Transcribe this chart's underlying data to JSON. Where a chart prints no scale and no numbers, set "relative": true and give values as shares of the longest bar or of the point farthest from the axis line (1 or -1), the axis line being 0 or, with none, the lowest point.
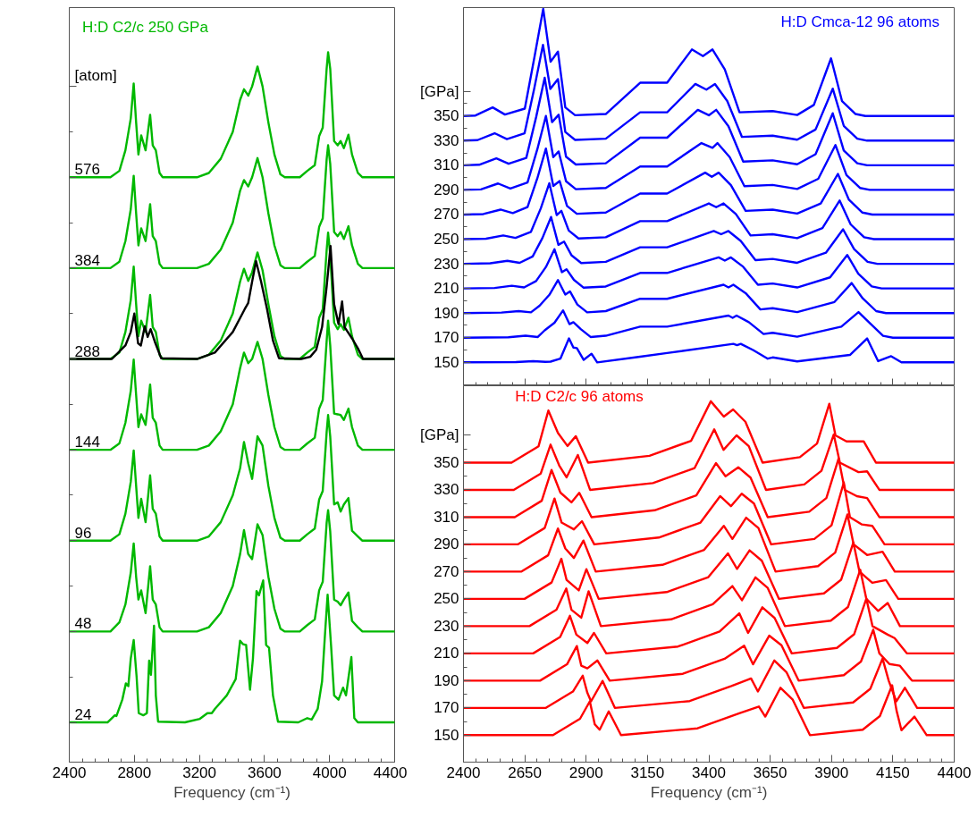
{
  "chart_data": [
    {
      "type": "line",
      "title": "H:D C2/c 250 GPa",
      "xlabel": "Frequency (cm⁻¹)",
      "ylabel": "[atom]",
      "relative": true,
      "xlim": [
        2400,
        4400
      ],
      "xticks": [
        2400,
        2800,
        3200,
        3600,
        4000,
        4400
      ],
      "x": [
        2400,
        2653,
        2708,
        2745,
        2778,
        2796,
        2811,
        2825,
        2842,
        2869,
        2897,
        2913,
        2932,
        2955,
        2974,
        3185,
        3258,
        3331,
        3405,
        3450,
        3474,
        3500,
        3524,
        3557,
        3588,
        3624,
        3661,
        3698,
        3725,
        3817,
        3863,
        3909,
        3936,
        3958,
        3982,
        3991,
        4004,
        4028,
        4050,
        4068,
        4088,
        4116,
        4138,
        4174,
        4202,
        4400
      ],
      "series": [
        {
          "name": "24",
          "color": "#00b800",
          "x": [
            2400,
            2635,
            2680,
            2690,
            2726,
            2748,
            2763,
            2778,
            2796,
            2814,
            2827,
            2855,
            2877,
            2891,
            2902,
            2921,
            2932,
            2946,
            3111,
            3203,
            3249,
            3276,
            3295,
            3368,
            3423,
            3450,
            3469,
            3487,
            3511,
            3529,
            3551,
            3566,
            3592,
            3610,
            3628,
            3652,
            3683,
            3808,
            3863,
            3890,
            3927,
            3954,
            3973,
            3988,
            4009,
            4028,
            4055,
            4083,
            4101,
            4134,
            4152,
            4174,
            4400
          ],
          "values": [
            0.056,
            0.056,
            0.066,
            0.065,
            0.088,
            0.111,
            0.107,
            0.146,
            0.172,
            0.12,
            0.069,
            0.066,
            0.069,
            0.143,
            0.123,
            0.192,
            0.094,
            0.057,
            0.056,
            0.061,
            0.069,
            0.069,
            0.075,
            0.094,
            0.117,
            0.171,
            0.166,
            0.165,
            0.102,
            0.146,
            0.241,
            0.235,
            0.256,
            0.165,
            0.161,
            0.094,
            0.057,
            0.056,
            0.062,
            0.06,
            0.075,
            0.114,
            0.184,
            0.236,
            0.165,
            0.094,
            0.088,
            0.105,
            0.094,
            0.148,
            0.062,
            0.056,
            0.056
          ]
        },
        {
          "name": "48",
          "color": "#00b800",
          "values": [
            0.184,
            0.184,
            0.197,
            0.222,
            0.267,
            0.308,
            0.261,
            0.229,
            0.242,
            0.21,
            0.276,
            0.229,
            0.222,
            0.19,
            0.184,
            0.184,
            0.19,
            0.21,
            0.248,
            0.293,
            0.327,
            0.293,
            0.286,
            0.335,
            0.32,
            0.261,
            0.216,
            0.188,
            0.184,
            0.184,
            0.193,
            0.201,
            0.242,
            0.254,
            0.337,
            0.355,
            0.325,
            0.229,
            0.226,
            0.221,
            0.229,
            0.239,
            0.199,
            0.19,
            0.184,
            0.184
          ]
        },
        {
          "name": "96",
          "color": "#00b800",
          "values": [
            0.312,
            0.312,
            0.321,
            0.35,
            0.395,
            0.439,
            0.389,
            0.344,
            0.371,
            0.338,
            0.404,
            0.357,
            0.35,
            0.318,
            0.312,
            0.312,
            0.318,
            0.338,
            0.376,
            0.414,
            0.451,
            0.421,
            0.399,
            0.459,
            0.446,
            0.389,
            0.344,
            0.316,
            0.312,
            0.312,
            0.321,
            0.329,
            0.37,
            0.382,
            0.465,
            0.489,
            0.459,
            0.363,
            0.366,
            0.353,
            0.363,
            0.372,
            0.326,
            0.318,
            0.312,
            0.312
          ]
        },
        {
          "name": "144",
          "color": "#00b800",
          "values": [
            0.44,
            0.44,
            0.449,
            0.478,
            0.523,
            0.567,
            0.517,
            0.472,
            0.49,
            0.475,
            0.532,
            0.485,
            0.478,
            0.446,
            0.44,
            0.44,
            0.446,
            0.466,
            0.504,
            0.555,
            0.577,
            0.562,
            0.568,
            0.592,
            0.568,
            0.517,
            0.472,
            0.444,
            0.44,
            0.44,
            0.449,
            0.457,
            0.498,
            0.51,
            0.593,
            0.622,
            0.587,
            0.491,
            0.49,
            0.489,
            0.482,
            0.498,
            0.472,
            0.446,
            0.44,
            0.44
          ]
        },
        {
          "name": "288",
          "color": "#00b800",
          "values": [
            0.568,
            0.568,
            0.577,
            0.606,
            0.651,
            0.698,
            0.645,
            0.6,
            0.622,
            0.606,
            0.658,
            0.613,
            0.606,
            0.574,
            0.568,
            0.568,
            0.574,
            0.594,
            0.632,
            0.677,
            0.695,
            0.678,
            0.69,
            0.718,
            0.693,
            0.645,
            0.6,
            0.572,
            0.568,
            0.568,
            0.577,
            0.585,
            0.626,
            0.638,
            0.721,
            0.746,
            0.715,
            0.619,
            0.61,
            0.617,
            0.609,
            0.626,
            0.6,
            0.574,
            0.568,
            0.568
          ]
        },
        {
          "name": "384",
          "color": "#00b800",
          "values": [
            0.696,
            0.696,
            0.705,
            0.734,
            0.779,
            0.826,
            0.773,
            0.728,
            0.752,
            0.734,
            0.786,
            0.741,
            0.734,
            0.702,
            0.696,
            0.696,
            0.702,
            0.722,
            0.76,
            0.805,
            0.82,
            0.811,
            0.824,
            0.851,
            0.824,
            0.773,
            0.728,
            0.7,
            0.696,
            0.696,
            0.705,
            0.713,
            0.754,
            0.766,
            0.849,
            0.869,
            0.843,
            0.747,
            0.741,
            0.747,
            0.737,
            0.755,
            0.728,
            0.702,
            0.696,
            0.696
          ]
        },
        {
          "name": "576",
          "color": "#00b800",
          "values": [
            0.824,
            0.824,
            0.833,
            0.862,
            0.907,
            0.956,
            0.901,
            0.856,
            0.883,
            0.862,
            0.912,
            0.869,
            0.862,
            0.83,
            0.824,
            0.824,
            0.83,
            0.85,
            0.888,
            0.933,
            0.948,
            0.939,
            0.952,
            0.98,
            0.952,
            0.901,
            0.856,
            0.828,
            0.824,
            0.824,
            0.833,
            0.841,
            0.882,
            0.894,
            0.977,
            1.0,
            0.977,
            0.875,
            0.869,
            0.875,
            0.865,
            0.884,
            0.856,
            0.83,
            0.824,
            0.824
          ]
        },
        {
          "color": "#000000",
          "x": [
            2400,
            2662,
            2745,
            2778,
            2800,
            2823,
            2840,
            2864,
            2882,
            2900,
            2928,
            2965,
            3185,
            3295,
            3405,
            3478,
            3500,
            3524,
            3548,
            3579,
            3616,
            3652,
            3689,
            3826,
            3881,
            3918,
            3954,
            3982,
            4006,
            4028,
            4055,
            4077,
            4092,
            4138,
            4174,
            4206,
            4400
          ],
          "values": [
            0.568,
            0.568,
            0.587,
            0.606,
            0.632,
            0.59,
            0.587,
            0.614,
            0.599,
            0.61,
            0.591,
            0.569,
            0.568,
            0.577,
            0.606,
            0.638,
            0.647,
            0.677,
            0.706,
            0.677,
            0.638,
            0.594,
            0.569,
            0.568,
            0.571,
            0.581,
            0.613,
            0.67,
            0.727,
            0.645,
            0.617,
            0.649,
            0.613,
            0.597,
            0.583,
            0.568,
            0.568
          ]
        }
      ]
    },
    {
      "type": "line",
      "title": "H:D Cmca-12 96 atoms",
      "ylabel": "[GPa]",
      "xlim": [
        2400,
        4400
      ],
      "xticks": [
        2400,
        2650,
        2900,
        3150,
        3400,
        3650,
        3900,
        4150,
        4400
      ],
      "ylim": [
        131,
        438
      ],
      "yticks": [
        150,
        170,
        190,
        210,
        230,
        250,
        270,
        290,
        310,
        330,
        350
      ],
      "tick_labels": "y",
      "series": [
        {
          "color": "#0000ff",
          "x": [
            2400,
            2614,
            2684,
            2734,
            2755,
            2795,
            2830,
            2848,
            2862,
            2890,
            2922,
            2945,
            3120,
            3230,
            3500,
            3515,
            3530,
            3580,
            3640,
            3660,
            3760,
            3975,
            4045,
            4090,
            4143,
            4185,
            4400
          ],
          "values": [
            150,
            150.2,
            151,
            150.4,
            150.6,
            153,
            169.4,
            162,
            161.6,
            152,
            157,
            150,
            154.6,
            157.6,
            165,
            164,
            165,
            160,
            153,
            154,
            150.8,
            156,
            169.4,
            151,
            155,
            150,
            150
          ]
        },
        {
          "color": "#0000ff",
          "x": [
            2400,
            2583,
            2653,
            2703,
            2731,
            2771,
            2806,
            2832,
            2848,
            2878,
            2918,
            2980,
            3120,
            3230,
            3480,
            3497,
            3513,
            3563,
            3623,
            3660,
            3760,
            3940,
            4010,
            4055,
            4110,
            4150,
            4400
          ],
          "values": [
            170,
            170.4,
            171.6,
            170.6,
            176,
            182.2,
            192.2,
            181,
            182.6,
            177,
            170.6,
            171.6,
            179,
            179,
            188,
            186.2,
            188,
            182.6,
            173,
            174,
            170.8,
            179,
            190.8,
            182,
            171.6,
            170,
            170
          ]
        },
        {
          "color": "#0000ff",
          "x": [
            2400,
            2555,
            2625,
            2675,
            2710,
            2750,
            2785,
            2815,
            2834,
            2864,
            2904,
            2980,
            3120,
            3230,
            3460,
            3480,
            3500,
            3550,
            3610,
            3660,
            3760,
            3912,
            3982,
            4027,
            4082,
            4122,
            4400
          ],
          "values": [
            190,
            190.4,
            191.6,
            190.6,
            196,
            204.8,
            216.8,
            205,
            207.6,
            197,
            190.6,
            191.6,
            201.6,
            201.6,
            213,
            210.8,
            213,
            206.2,
            193,
            194,
            190.8,
            199,
            214.4,
            202,
            191.6,
            190,
            190
          ]
        },
        {
          "color": "#0000ff",
          "x": [
            2400,
            2527,
            2597,
            2647,
            2696,
            2736,
            2771,
            2801,
            2820,
            2850,
            2890,
            2980,
            3120,
            3230,
            3440,
            3465,
            3490,
            3540,
            3600,
            3660,
            3760,
            3894,
            3964,
            4009,
            4064,
            4104,
            4400
          ],
          "values": [
            210,
            210.4,
            212.2,
            210.8,
            216,
            227.4,
            241.8,
            223.2,
            225.6,
            217,
            210.6,
            211.6,
            222.6,
            222.6,
            235.2,
            232.6,
            235.2,
            227.6,
            213,
            214,
            210.8,
            219,
            237.2,
            222,
            211.6,
            210,
            210
          ]
        },
        {
          "color": "#0000ff",
          "x": [
            2400,
            2509,
            2579,
            2629,
            2682,
            2722,
            2757,
            2787,
            2810,
            2840,
            2880,
            2980,
            3120,
            3230,
            3420,
            3450,
            3480,
            3530,
            3590,
            3660,
            3760,
            3877,
            3947,
            3992,
            4047,
            4087,
            4400
          ],
          "values": [
            230,
            230.4,
            232.4,
            230.8,
            236,
            251,
            268,
            245.4,
            248,
            237,
            230.6,
            231.6,
            243.4,
            243.4,
            256.6,
            254,
            256.6,
            248.6,
            233,
            234,
            230.8,
            239,
            258,
            242,
            231.6,
            230,
            230
          ]
        },
        {
          "color": "#0000ff",
          "x": [
            2400,
            2492,
            2562,
            2612,
            2675,
            2715,
            2750,
            2780,
            2799,
            2829,
            2869,
            2980,
            3120,
            3230,
            3400,
            3430,
            3460,
            3510,
            3570,
            3660,
            3760,
            3863,
            3933,
            3978,
            4033,
            4073,
            4400
          ],
          "values": [
            250,
            250.4,
            253,
            251,
            256,
            275,
            295.4,
            269.6,
            273,
            257,
            250.6,
            251.6,
            264.6,
            264.6,
            279,
            276,
            279,
            270.4,
            253,
            254,
            250.8,
            259,
            281.4,
            262,
            251.6,
            250,
            250
          ]
        },
        {
          "color": "#0000ff",
          "x": [
            2400,
            2481,
            2551,
            2601,
            2661,
            2701,
            2736,
            2766,
            2792,
            2822,
            2862,
            2980,
            3120,
            3230,
            3385,
            3412,
            3440,
            3490,
            3550,
            3660,
            3760,
            3856,
            3926,
            3971,
            4026,
            4066,
            4400
          ],
          "values": [
            270,
            270.4,
            274,
            271.2,
            276,
            299.4,
            323.6,
            293.2,
            297.2,
            277,
            270.6,
            271.6,
            287,
            287,
            304,
            300.6,
            304,
            293.8,
            273,
            274,
            270.8,
            279,
            303,
            282,
            271.6,
            270,
            270
          ]
        },
        {
          "color": "#0000ff",
          "x": [
            2400,
            2471,
            2541,
            2591,
            2661,
            2701,
            2736,
            2766,
            2788,
            2818,
            2858,
            2980,
            3120,
            3230,
            3370,
            3415,
            3435,
            3485,
            3545,
            3660,
            3760,
            3846,
            3916,
            3961,
            4016,
            4056,
            4400
          ],
          "values": [
            290,
            290.4,
            295.2,
            291.2,
            296,
            323,
            350,
            316.6,
            321.2,
            297,
            290.6,
            291.6,
            309,
            309,
            328,
            324.2,
            328,
            316.6,
            293,
            294,
            290.8,
            299,
            326.4,
            302,
            291.6,
            290,
            290
          ]
        },
        {
          "color": "#0000ff",
          "x": [
            2400,
            2464,
            2534,
            2584,
            2656,
            2696,
            2731,
            2761,
            2788,
            2818,
            2858,
            2980,
            3120,
            3230,
            3355,
            3400,
            3430,
            3480,
            3540,
            3660,
            3760,
            3835,
            3905,
            3950,
            4005,
            4045,
            4400
          ],
          "values": [
            310,
            310.4,
            315.6,
            311.2,
            316,
            349,
            381,
            345,
            351,
            317,
            310.6,
            311.6,
            332.4,
            332.4,
            355,
            350.6,
            355,
            341.6,
            313,
            314,
            310.8,
            319,
            352.2,
            322,
            311.6,
            310,
            310
          ]
        },
        {
          "color": "#0000ff",
          "x": [
            2400,
            2457,
            2527,
            2577,
            2649,
            2689,
            2724,
            2754,
            2785,
            2815,
            2855,
            2980,
            3120,
            3230,
            3345,
            3390,
            3425,
            3475,
            3535,
            3660,
            3760,
            3835,
            3905,
            3950,
            4005,
            4045,
            4400
          ],
          "values": [
            330,
            330.4,
            336,
            331.2,
            336,
            372.8,
            407.8,
            372,
            380,
            337,
            330.6,
            331.6,
            353,
            353,
            376,
            371.4,
            376,
            362.2,
            333,
            334,
            330.8,
            339,
            372.2,
            342,
            331.6,
            330,
            330
          ]
        },
        {
          "color": "#0000ff",
          "x": [
            2400,
            2449,
            2519,
            2569,
            2650,
            2690,
            2725,
            2755,
            2785,
            2815,
            2855,
            2980,
            3120,
            3230,
            3331,
            3376,
            3415,
            3465,
            3525,
            3660,
            3760,
            3828,
            3898,
            3943,
            3998,
            4038,
            4400
          ],
          "values": [
            350,
            350.4,
            357,
            351.2,
            356,
            398.6,
            437,
            394,
            402.2,
            357,
            350.6,
            351.6,
            377,
            377,
            404,
            398.6,
            404,
            387.8,
            353,
            354,
            350.8,
            359,
            396.8,
            362,
            351.6,
            350,
            350
          ]
        }
      ]
    },
    {
      "type": "line",
      "title": "H:D C2/c 96 atoms",
      "xlabel": "Frequency (cm⁻¹)",
      "ylabel": "[GPa]",
      "xlim": [
        2400,
        4400
      ],
      "xticks": [
        2400,
        2650,
        2900,
        3150,
        3400,
        3650,
        3900,
        4150,
        4400
      ],
      "ylim": [
        130.2,
        406.4
      ],
      "yticks": [
        150,
        170,
        190,
        210,
        230,
        250,
        270,
        290,
        310,
        330,
        350
      ],
      "series": [
        {
          "color": "#ff0000",
          "x": [
            2400,
            2765,
            2875,
            2915,
            2935,
            2955,
            2992,
            3042,
            3354,
            3524,
            3604,
            3630,
            3692,
            3742,
            3812,
            4027,
            4097,
            4147,
            4165,
            4185,
            4238,
            4288,
            4400
          ],
          "values": [
            150,
            150,
            162,
            174.8,
            158,
            154,
            167.4,
            150,
            155,
            166,
            171,
            163.6,
            184.8,
            176,
            150,
            154,
            164,
            186.6,
            168,
            153.6,
            163.6,
            150,
            150
          ]
        },
        {
          "color": "#ff0000",
          "x": [
            2400,
            2736,
            2846,
            2886,
            2905,
            2920,
            2967,
            3017,
            3322,
            3492,
            3572,
            3600,
            3667,
            3717,
            3787,
            3988,
            4058,
            4108,
            4133,
            4164,
            4199,
            4249,
            4400
          ],
          "values": [
            170,
            170,
            182,
            193.6,
            181,
            174.8,
            189.8,
            170,
            175,
            186,
            191.6,
            182,
            204.8,
            196,
            170,
            174,
            184,
            206.2,
            190,
            174.8,
            184.8,
            170,
            170
          ]
        },
        {
          "color": "#ff0000",
          "x": [
            2400,
            2712,
            2822,
            2862,
            2880,
            2905,
            2946,
            2996,
            3294,
            3464,
            3544,
            3580,
            3646,
            3696,
            3766,
            3950,
            4020,
            4070,
            4095,
            4136,
            4178,
            4228,
            4400
          ],
          "values": [
            190,
            190,
            202,
            215.4,
            201,
            199,
            204.8,
            190,
            195,
            206,
            215.6,
            202,
            223,
            216,
            190,
            194,
            204,
            227.4,
            210,
            202.2,
            201,
            190,
            190
          ]
        },
        {
          "color": "#ff0000",
          "x": [
            2400,
            2684,
            2794,
            2834,
            2860,
            2905,
            2932,
            2982,
            3274,
            3444,
            3524,
            3560,
            3618,
            3668,
            3738,
            3922,
            3992,
            4042,
            4067,
            4129,
            4157,
            4207,
            4400
          ],
          "values": [
            210,
            210,
            222,
            237.6,
            223.8,
            217.6,
            225,
            210,
            215,
            226,
            239.4,
            225,
            243.8,
            236,
            210,
            214,
            224,
            250.2,
            230,
            223.8,
            221.2,
            210,
            210
          ]
        },
        {
          "color": "#ff0000",
          "x": [
            2400,
            2669,
            2779,
            2819,
            2840,
            2880,
            2910,
            2960,
            3246,
            3416,
            3496,
            3535,
            3590,
            3640,
            3710,
            3897,
            3967,
            4017,
            4042,
            4090,
            4129,
            4179,
            4400
          ],
          "values": [
            230,
            230,
            242,
            257.6,
            242,
            236.2,
            255.6,
            230,
            235,
            246,
            259.4,
            249,
            265.8,
            258,
            230,
            234,
            244,
            271.4,
            250,
            241.2,
            247,
            230,
            230
          ]
        },
        {
          "color": "#ff0000",
          "x": [
            2400,
            2649,
            2759,
            2799,
            2820,
            2870,
            2901,
            2951,
            3228,
            3398,
            3478,
            3515,
            3566,
            3616,
            3686,
            3869,
            3939,
            3989,
            4014,
            4066,
            4122,
            4172,
            4400
          ],
          "values": [
            250,
            250,
            262,
            279.4,
            264,
            256.2,
            271.8,
            250,
            255,
            266,
            283.4,
            272,
            285.6,
            278,
            250,
            254,
            264,
            291.4,
            270,
            261.8,
            263.8,
            250,
            250
          ]
        },
        {
          "color": "#ff0000",
          "x": [
            2400,
            2635,
            2745,
            2785,
            2815,
            2850,
            2889,
            2939,
            3211,
            3381,
            3461,
            3496,
            3552,
            3602,
            3672,
            3845,
            3915,
            3965,
            3990,
            4045,
            4108,
            4158,
            4400
          ],
          "values": [
            270,
            270,
            282,
            301.6,
            287,
            280,
            292.8,
            270,
            275,
            286,
            303.6,
            294,
            309.6,
            302,
            270,
            274,
            284,
            312,
            290,
            282.2,
            284.6,
            270,
            270
          ]
        },
        {
          "color": "#ff0000",
          "x": [
            2400,
            2621,
            2731,
            2771,
            2800,
            2850,
            2883,
            2933,
            3196,
            3366,
            3446,
            3490,
            3534,
            3584,
            3654,
            3830,
            3900,
            3950,
            3975,
            4024,
            4066,
            4116,
            4400
          ],
          "values": [
            290,
            290,
            302,
            323.6,
            306,
            301,
            307,
            290,
            295,
            306,
            325.4,
            318,
            327.2,
            320,
            290,
            294,
            304,
            335.4,
            310,
            304.6,
            303.6,
            290,
            290
          ]
        },
        {
          "color": "#ff0000",
          "x": [
            2400,
            2609,
            2719,
            2759,
            2795,
            2840,
            2872,
            2922,
            3179,
            3349,
            3429,
            3468,
            3520,
            3570,
            3640,
            3809,
            3879,
            3929,
            3954,
            4003,
            4045,
            4095,
            4400
          ],
          "values": [
            310,
            310,
            322,
            344.6,
            328,
            320.8,
            327.8,
            310,
            315,
            326,
            349.6,
            340,
            346.6,
            339,
            310,
            314,
            324,
            353,
            330,
            325.4,
            324,
            310,
            310
          ]
        },
        {
          "color": "#ff0000",
          "x": [
            2400,
            2605,
            2715,
            2755,
            2790,
            2820,
            2866,
            2916,
            3172,
            3342,
            3422,
            3460,
            3513,
            3563,
            3633,
            3789,
            3859,
            3909,
            3934,
            4010,
            4045,
            4095,
            4400
          ],
          "values": [
            330,
            330,
            342,
            363.2,
            348,
            339.2,
            355.6,
            330,
            335,
            346,
            374.4,
            359.4,
            370,
            362,
            330,
            334,
            344,
            370.6,
            350,
            343,
            343.6,
            330,
            330
          ]
        },
        {
          "color": "#ff0000",
          "x": [
            2400,
            2596,
            2706,
            2746,
            2785,
            2824,
            2858,
            2908,
            3158,
            3328,
            3408,
            3461,
            3499,
            3549,
            3619,
            3771,
            3841,
            3891,
            3916,
            3961,
            4031,
            4081,
            4400
          ],
          "values": [
            350,
            350,
            362,
            388.2,
            371.8,
            362.2,
            369.4,
            350,
            355,
            366,
            395,
            383.8,
            389,
            380,
            350,
            354,
            364,
            393.2,
            370,
            365.6,
            365.6,
            350,
            350
          ]
        }
      ]
    }
  ]
}
